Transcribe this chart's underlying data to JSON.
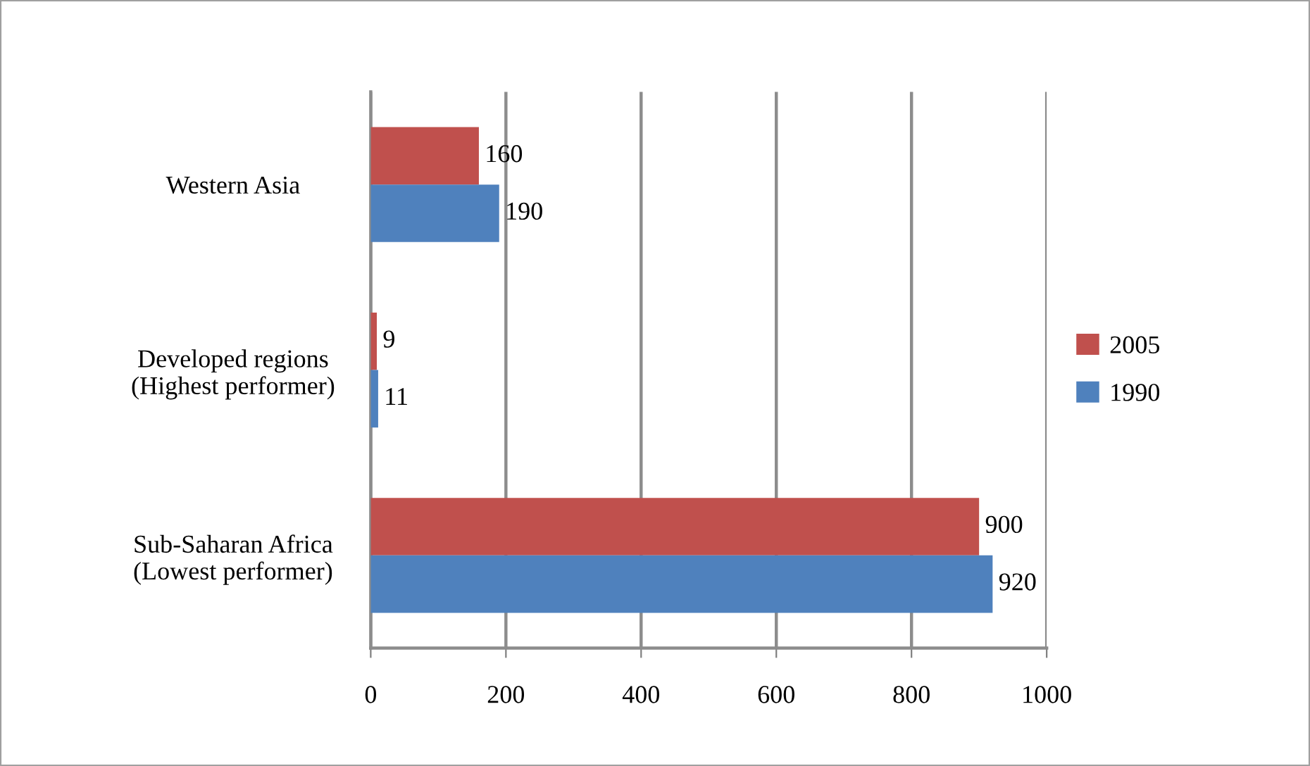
{
  "chart_data": {
    "type": "bar",
    "orientation": "horizontal",
    "categories": [
      "Western Asia",
      "Developed regions\n(Highest performer)",
      "Sub-Saharan Africa\n(Lowest performer)"
    ],
    "series": [
      {
        "name": "2005",
        "color": "#c0504d",
        "values": [
          160,
          9,
          900
        ]
      },
      {
        "name": "1990",
        "color": "#4f81bd",
        "values": [
          190,
          11,
          920
        ]
      }
    ],
    "xlim": [
      0,
      1000
    ],
    "xticks": [
      0,
      200,
      400,
      600,
      800,
      1000
    ],
    "data_labels": true,
    "grid": "x",
    "legend": "right"
  }
}
